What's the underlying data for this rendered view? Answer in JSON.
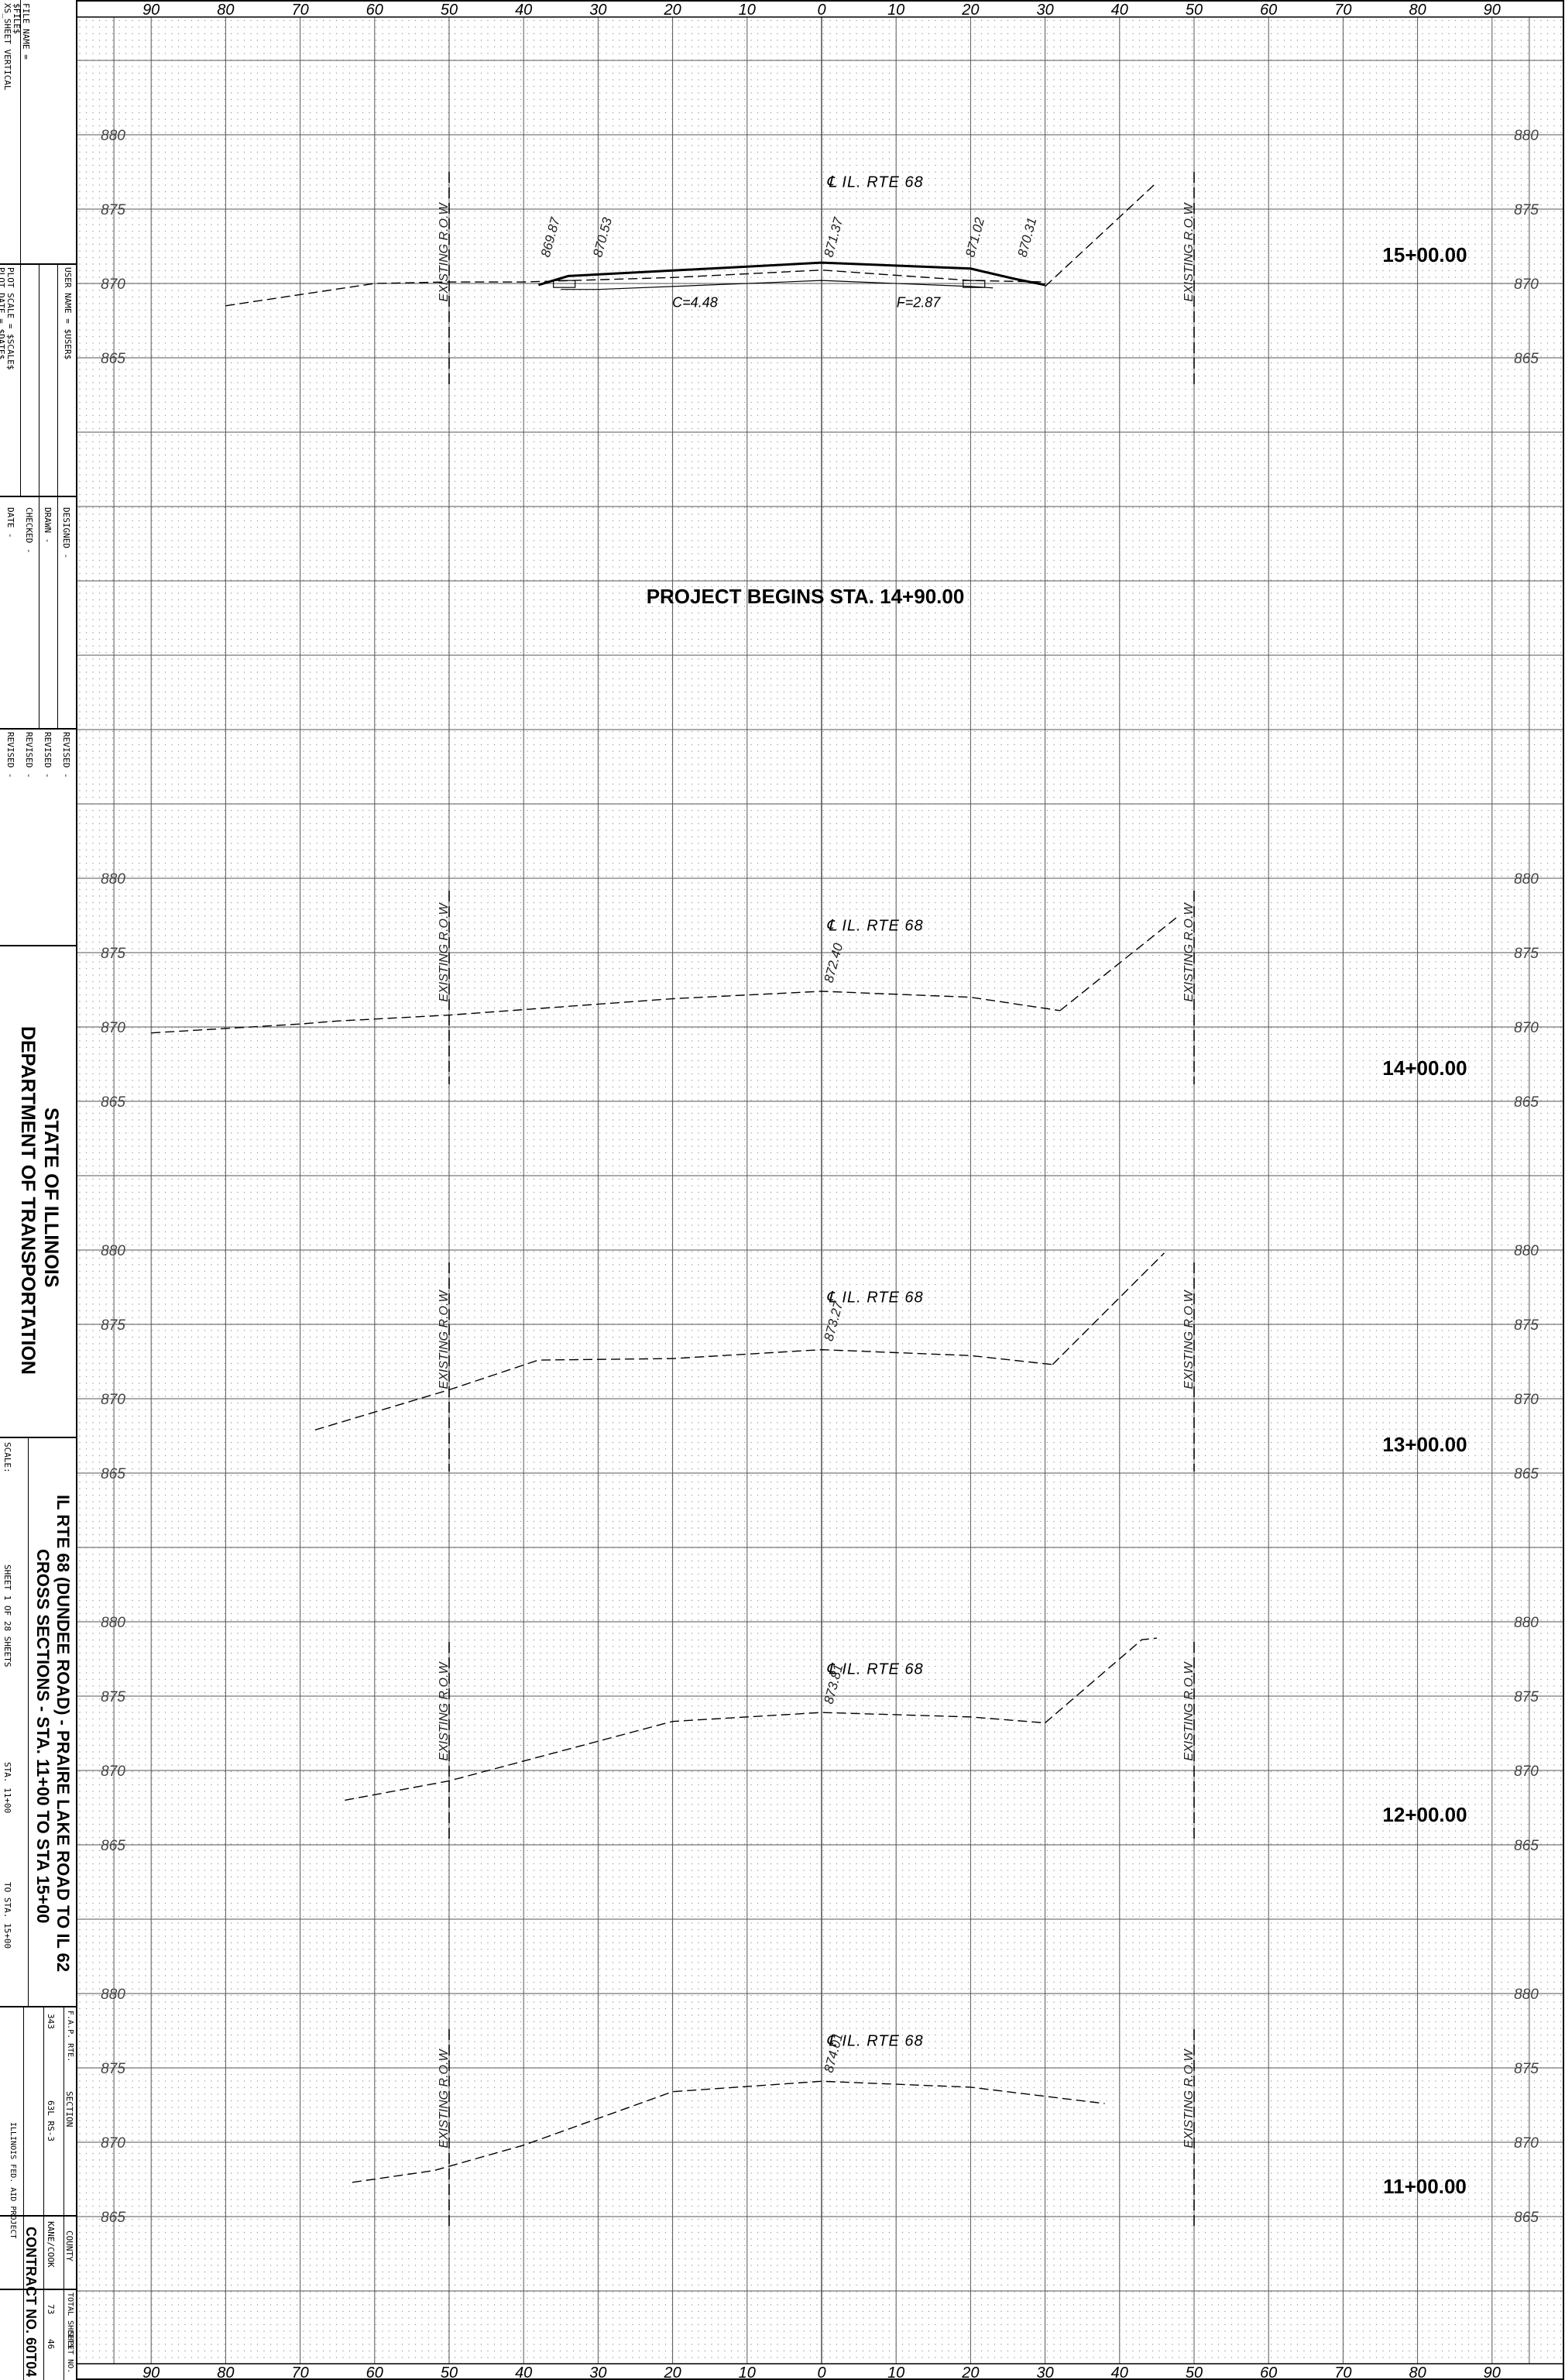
{
  "grid": {
    "offset_labels": [
      "90",
      "80",
      "70",
      "60",
      "50",
      "40",
      "30",
      "20",
      "10",
      "0",
      "10",
      "20",
      "30",
      "40",
      "50",
      "60",
      "70",
      "80",
      "90"
    ],
    "bottom_offset_labels": [
      "90",
      "80",
      "70",
      "60",
      "50",
      "40",
      "30",
      "20",
      "10",
      "0",
      "10",
      "20",
      "30",
      "40",
      "50",
      "60",
      "70",
      "80",
      "90"
    ]
  },
  "sections": [
    {
      "station": "15+00.00",
      "elev_labels": [
        "880",
        "875",
        "870",
        "865"
      ],
      "centerline_label": "℄ IL. RTE 68",
      "row_label": "EXISTING R.O.W",
      "spot_elevations": [
        "869.87",
        "870.53",
        "871.37",
        "871.02",
        "870.31"
      ],
      "cut_label": "C=4.48",
      "fill_label": "F=2.87",
      "profile": [
        [
          -80,
          868.5
        ],
        [
          -60,
          870.0
        ],
        [
          -50,
          870.1
        ],
        [
          -40,
          870.1
        ],
        [
          -20,
          870.4
        ],
        [
          0,
          870.9
        ],
        [
          20,
          870.2
        ],
        [
          30,
          870.1
        ]
      ],
      "right_slope": [
        [
          30,
          869.8
        ],
        [
          45,
          876.8
        ]
      ],
      "proposed_top": [
        [
          -38,
          869.9
        ],
        [
          -34,
          870.5
        ],
        [
          0,
          871.4
        ],
        [
          20,
          871.0
        ],
        [
          26,
          870.3
        ],
        [
          30,
          869.9
        ]
      ],
      "proposed_base": [
        [
          -35,
          869.6
        ],
        [
          -30,
          869.6
        ],
        [
          0,
          870.2
        ],
        [
          20,
          869.8
        ],
        [
          23,
          869.7
        ]
      ]
    },
    {
      "station": "14+00.00",
      "elev_labels": [
        "880",
        "875",
        "870",
        "865"
      ],
      "centerline_label": "℄ IL. RTE 68",
      "row_label": "EXISTING R.O.W",
      "spot_elevations": [
        "872.40"
      ],
      "profile": [
        [
          -90,
          869.6
        ],
        [
          -70,
          870.2
        ],
        [
          -65,
          870.4
        ],
        [
          -50,
          870.8
        ],
        [
          -20,
          871.9
        ],
        [
          0,
          872.4
        ],
        [
          20,
          872.0
        ],
        [
          32,
          871.1
        ]
      ],
      "right_slope": [
        [
          32,
          871.1
        ],
        [
          48,
          877.5
        ]
      ]
    },
    {
      "station": "13+00.00",
      "elev_labels": [
        "880",
        "875",
        "870",
        "865"
      ],
      "centerline_label": "℄ IL. RTE 68",
      "row_label": "EXISTING R.O.W",
      "spot_elevations": [
        "873.27"
      ],
      "profile": [
        [
          -68,
          867.9
        ],
        [
          -50,
          870.6
        ],
        [
          -38,
          872.6
        ],
        [
          -20,
          872.7
        ],
        [
          0,
          873.3
        ],
        [
          20,
          872.9
        ],
        [
          31,
          872.3
        ]
      ],
      "right_slope": [
        [
          31,
          872.3
        ],
        [
          46,
          879.8
        ]
      ]
    },
    {
      "station": "12+00.00",
      "elev_labels": [
        "880",
        "875",
        "870",
        "865"
      ],
      "centerline_label": "℄ IL. RTE 68",
      "row_label": "EXISTING R.O.W",
      "spot_elevations": [
        "873.81"
      ],
      "profile": [
        [
          -64,
          868.0
        ],
        [
          -50,
          869.3
        ],
        [
          -35,
          871.3
        ],
        [
          -20,
          873.3
        ],
        [
          0,
          873.9
        ],
        [
          20,
          873.6
        ],
        [
          30,
          873.2
        ]
      ],
      "right_slope": [
        [
          30,
          873.2
        ],
        [
          43,
          878.8
        ],
        [
          45,
          878.9
        ]
      ]
    },
    {
      "station": "11+00.00",
      "elev_labels": [
        "880",
        "875",
        "870",
        "865"
      ],
      "centerline_label": "℄ IL. RTE 68",
      "row_label": "EXISTING R.O.W",
      "spot_elevations": [
        "874.01"
      ],
      "profile": [
        [
          -63,
          867.3
        ],
        [
          -52,
          868.1
        ],
        [
          -40,
          869.8
        ],
        [
          -20,
          873.4
        ],
        [
          0,
          874.1
        ],
        [
          20,
          873.7
        ],
        [
          38,
          872.6
        ]
      ]
    }
  ],
  "annotation": "PROJECT BEGINS STA. 14+90.00",
  "title_block": {
    "file_name": "FILE NAME =",
    "file_val": "$FILE$",
    "sheet_type": "XS_SHEET VERTICAL",
    "user_name": "USER NAME = $USER$",
    "plot_scale": "PLOT SCALE = $SCALE$",
    "plot_date": "PLOT DATE = $DATE$",
    "designed": "DESIGNED  -",
    "drawn": "DRAWN  -",
    "checked": "CHECKED  -",
    "date": "DATE  -",
    "revised": [
      "REVISED  -",
      "REVISED  -",
      "REVISED  -",
      "REVISED  -"
    ],
    "state": "STATE OF ILLINOIS",
    "dept": "DEPARTMENT OF TRANSPORTATION",
    "scale": "SCALE:",
    "sheet_title_1": "IL RTE 68 (DUNDEE ROAD) - PRAIRE LAKE ROAD TO IL 62",
    "sheet_title_2": "CROSS SECTIONS - STA. 11+00 TO STA 15+00",
    "sheet_of": "SHEET 1     OF  28  SHEETS",
    "sta_from": "STA. 11+00",
    "sta_to": "TO STA. 15+00",
    "fap_rte_head": "F.A.P. RTE.",
    "fap_rte": "343",
    "section_head": "SECTION",
    "section": "63L RS-3",
    "county_head": "COUNTY",
    "county": "KANE/COOK",
    "total_sheets_head": "TOTAL SHEETS",
    "total_sheets": "73",
    "sheet_no_head": "SHEET NO.",
    "sheet_no": "46",
    "fed_aid": "ILLINOIS FED. AID PROJECT",
    "contract": "CONTRACT NO. 60T04"
  }
}
